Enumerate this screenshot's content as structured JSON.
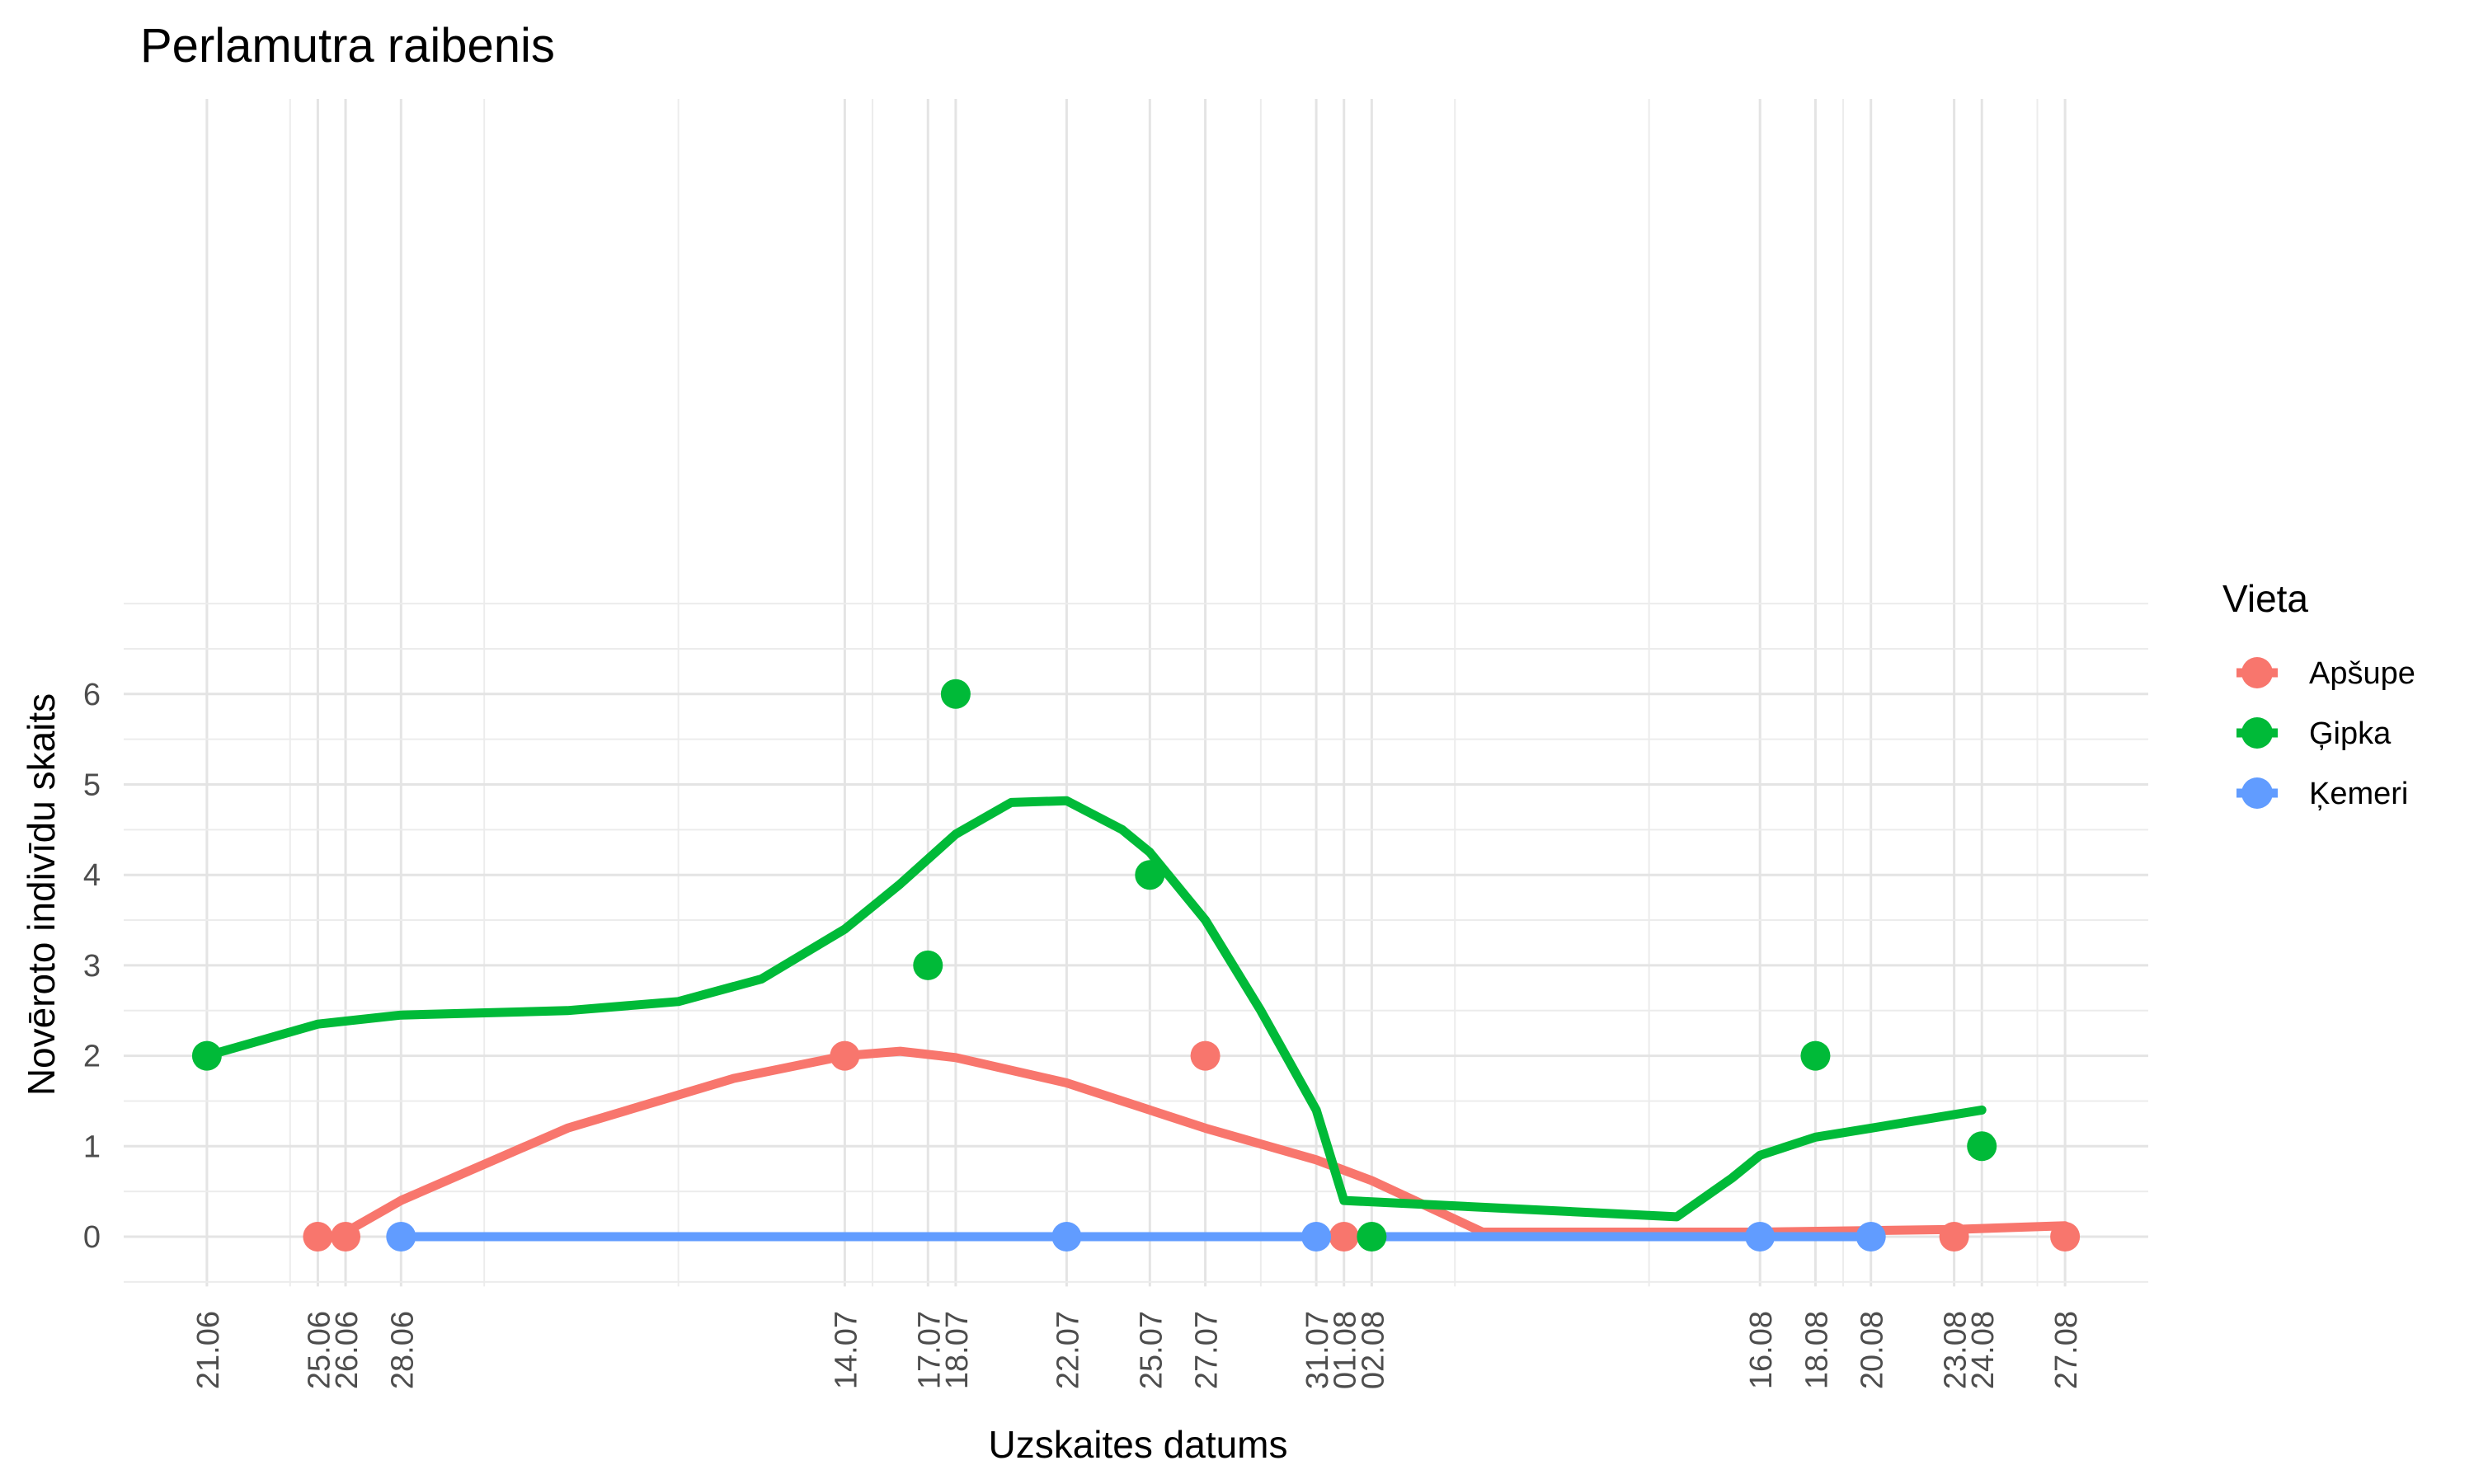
{
  "chart_data": {
    "type": "scatter",
    "title": "Perlamutra raibenis",
    "xlabel": "Uzskaites datums",
    "ylabel": "Novēroto indivīdu skaits",
    "x_ticks": [
      "21.06",
      "25.06",
      "26.06",
      "28.06",
      "14.07",
      "17.07",
      "18.07",
      "22.07",
      "25.07",
      "27.07",
      "31.07",
      "01.08",
      "02.08",
      "16.08",
      "18.08",
      "20.08",
      "23.08",
      "24.08",
      "27.08"
    ],
    "y_ticks": [
      0,
      1,
      2,
      3,
      4,
      5,
      6
    ],
    "ylim": [
      -0.5,
      7
    ],
    "grid": true,
    "legend": {
      "title": "Vieta",
      "position": "right"
    },
    "series": [
      {
        "name": "Apšupe",
        "color": "#F8766D",
        "points": [
          {
            "x": "25.06",
            "y": 0
          },
          {
            "x": "26.06",
            "y": 0
          },
          {
            "x": "14.07",
            "y": 2
          },
          {
            "x": "27.07",
            "y": 2
          },
          {
            "x": "01.08",
            "y": 0
          },
          {
            "x": "23.08",
            "y": 0
          },
          {
            "x": "27.08",
            "y": 0
          }
        ],
        "trend": [
          {
            "x": "26.06",
            "y": 0.05
          },
          {
            "x": "28.06",
            "y": 0.4
          },
          {
            "x": "04.07",
            "y": 1.2
          },
          {
            "x": "10.07",
            "y": 1.75
          },
          {
            "x": "14.07",
            "y": 2.0
          },
          {
            "x": "16.07",
            "y": 2.05
          },
          {
            "x": "18.07",
            "y": 1.98
          },
          {
            "x": "22.07",
            "y": 1.7
          },
          {
            "x": "25.07",
            "y": 1.4
          },
          {
            "x": "27.07",
            "y": 1.2
          },
          {
            "x": "31.07",
            "y": 0.85
          },
          {
            "x": "02.08",
            "y": 0.62
          },
          {
            "x": "06.08",
            "y": 0.05
          },
          {
            "x": "16.08",
            "y": 0.05
          },
          {
            "x": "23.08",
            "y": 0.08
          },
          {
            "x": "27.08",
            "y": 0.12
          }
        ]
      },
      {
        "name": "Ģipka",
        "color": "#00BA38",
        "points": [
          {
            "x": "21.06",
            "y": 2
          },
          {
            "x": "17.07",
            "y": 3
          },
          {
            "x": "18.07",
            "y": 6
          },
          {
            "x": "25.07",
            "y": 4
          },
          {
            "x": "02.08",
            "y": 0
          },
          {
            "x": "18.08",
            "y": 2
          },
          {
            "x": "24.08",
            "y": 1
          }
        ],
        "trend": [
          {
            "x": "21.06",
            "y": 2.0
          },
          {
            "x": "25.06",
            "y": 2.35
          },
          {
            "x": "28.06",
            "y": 2.45
          },
          {
            "x": "04.07",
            "y": 2.5
          },
          {
            "x": "08.07",
            "y": 2.6
          },
          {
            "x": "11.07",
            "y": 2.85
          },
          {
            "x": "14.07",
            "y": 3.4
          },
          {
            "x": "16.07",
            "y": 3.9
          },
          {
            "x": "18.07",
            "y": 4.45
          },
          {
            "x": "20.07",
            "y": 4.8
          },
          {
            "x": "22.07",
            "y": 4.82
          },
          {
            "x": "24.07",
            "y": 4.5
          },
          {
            "x": "25.07",
            "y": 4.25
          },
          {
            "x": "27.07",
            "y": 3.5
          },
          {
            "x": "29.07",
            "y": 2.5
          },
          {
            "x": "31.07",
            "y": 1.4
          },
          {
            "x": "01.08",
            "y": 0.4
          },
          {
            "x": "13.08",
            "y": 0.22
          },
          {
            "x": "15.08",
            "y": 0.65
          },
          {
            "x": "16.08",
            "y": 0.9
          },
          {
            "x": "18.08",
            "y": 1.1
          },
          {
            "x": "20.08",
            "y": 1.2
          },
          {
            "x": "24.08",
            "y": 1.4
          }
        ]
      },
      {
        "name": "Ķemeri",
        "color": "#619CFF",
        "points": [
          {
            "x": "28.06",
            "y": 0
          },
          {
            "x": "22.07",
            "y": 0
          },
          {
            "x": "31.07",
            "y": 0
          },
          {
            "x": "16.08",
            "y": 0
          },
          {
            "x": "20.08",
            "y": 0
          }
        ],
        "trend": [
          {
            "x": "28.06",
            "y": 0
          },
          {
            "x": "20.08",
            "y": 0
          }
        ]
      }
    ]
  }
}
